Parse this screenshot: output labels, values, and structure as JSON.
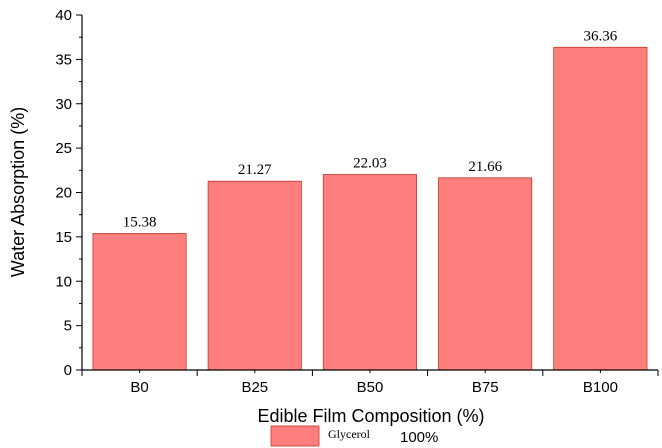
{
  "chart_data": {
    "type": "bar",
    "categories": [
      "B0",
      "B25",
      "B50",
      "B75",
      "B100"
    ],
    "series": [
      {
        "name": "Glycerol",
        "values": [
          15.38,
          21.27,
          22.03,
          21.66,
          36.36
        ]
      }
    ],
    "data_labels": [
      "15.38",
      "21.27",
      "22.03",
      "21.66",
      "36.36"
    ],
    "xlabel": "Edible Film Composition (%)",
    "ylabel": "Water Absorption (%)",
    "ylim": [
      0,
      40
    ],
    "yticks": [
      0,
      5,
      10,
      15,
      20,
      25,
      30,
      35,
      40
    ],
    "grid": false,
    "legend": {
      "position": "bottom",
      "label": "Glycerol",
      "value_text": "100%"
    },
    "colors": {
      "bar_fill": "#ff7f7f",
      "bar_stroke": "#c0392b",
      "axis": "#000000"
    }
  }
}
